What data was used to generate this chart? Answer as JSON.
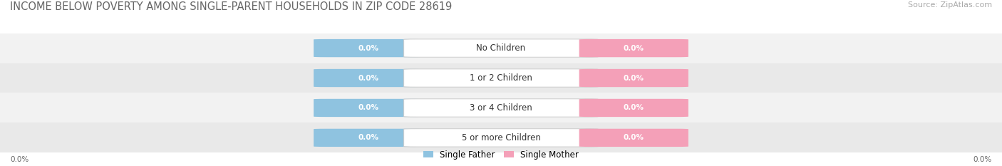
{
  "title": "INCOME BELOW POVERTY AMONG SINGLE-PARENT HOUSEHOLDS IN ZIP CODE 28619",
  "source": "Source: ZipAtlas.com",
  "categories": [
    "No Children",
    "1 or 2 Children",
    "3 or 4 Children",
    "5 or more Children"
  ],
  "single_father_values": [
    0.0,
    0.0,
    0.0,
    0.0
  ],
  "single_mother_values": [
    0.0,
    0.0,
    0.0,
    0.0
  ],
  "father_color": "#8fc3e0",
  "mother_color": "#f4a0b8",
  "title_fontsize": 10.5,
  "source_fontsize": 8,
  "category_fontsize": 8.5,
  "value_fontsize": 7.5,
  "legend_fontsize": 8.5,
  "axis_label_left": "0.0%",
  "axis_label_right": "0.0%",
  "background_color": "#ffffff",
  "stripe_colors": [
    "#f2f2f2",
    "#e9e9e9"
  ]
}
